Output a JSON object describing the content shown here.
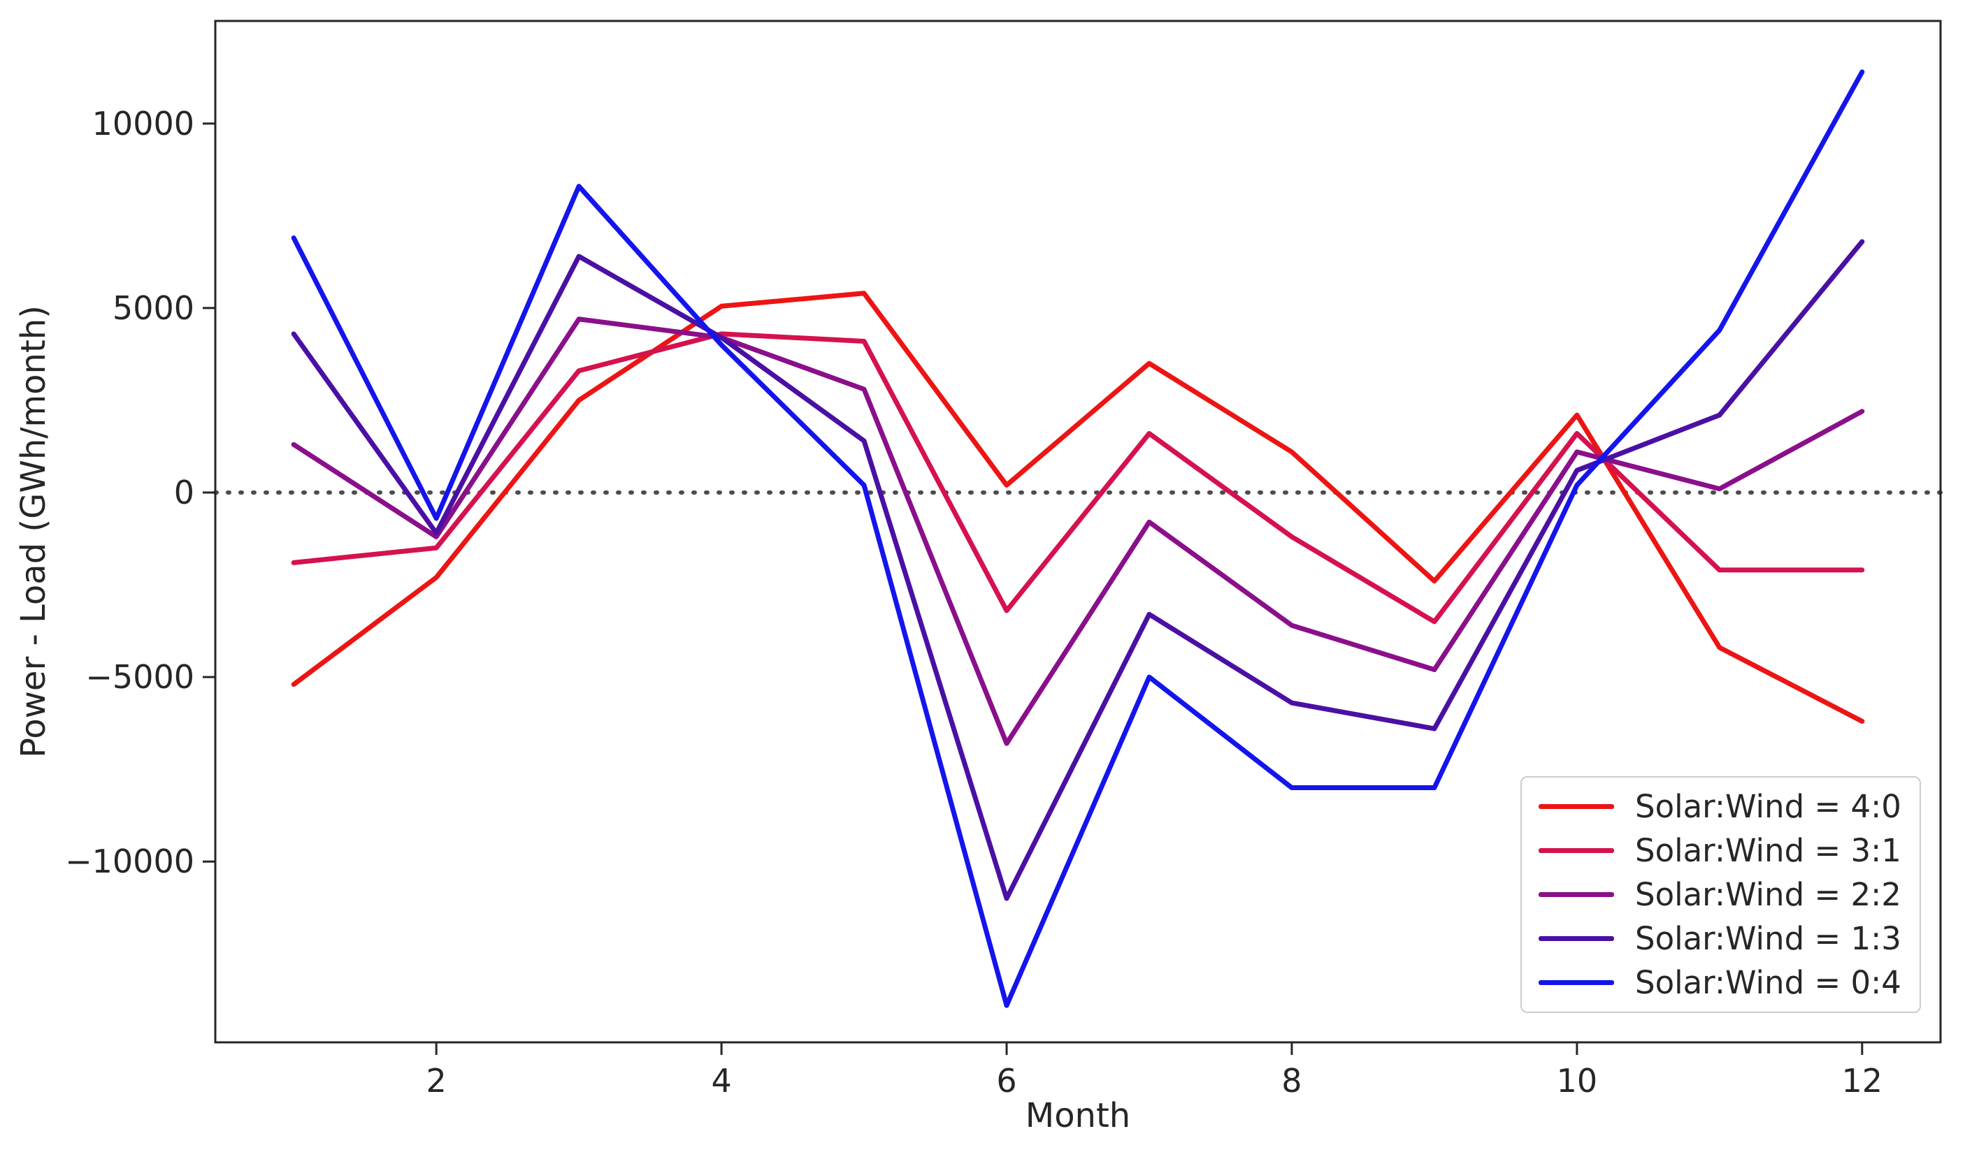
{
  "figure": {
    "background": "#ffffff",
    "axis_color": "#262626",
    "zero_line_color": "#4d4d4d"
  },
  "chart_data": {
    "type": "line",
    "title": "",
    "xlabel": "Month",
    "ylabel": "Power - Load (GWh/month)",
    "x": [
      1,
      2,
      3,
      4,
      5,
      6,
      7,
      8,
      9,
      10,
      11,
      12
    ],
    "series": [
      {
        "name": "Solar:Wind = 4:0",
        "color": "#ed1414",
        "values": [
          -5200,
          -2300,
          2500,
          5050,
          5400,
          200,
          3500,
          1100,
          -2400,
          2100,
          -4200,
          -6200
        ]
      },
      {
        "name": "Solar:Wind = 3:1",
        "color": "#d5114e",
        "values": [
          -1900,
          -1500,
          3300,
          4300,
          4100,
          -3200,
          1600,
          -1200,
          -3500,
          1600,
          -2100,
          -2100
        ]
      },
      {
        "name": "Solar:Wind = 2:2",
        "color": "#8a0f8a",
        "values": [
          1300,
          -1200,
          4700,
          4200,
          2800,
          -6800,
          -800,
          -3600,
          -4800,
          1100,
          100,
          2200
        ]
      },
      {
        "name": "Solar:Wind = 1:3",
        "color": "#4a10a4",
        "values": [
          4300,
          -1100,
          6400,
          4200,
          1400,
          -11000,
          -3300,
          -5700,
          -6400,
          600,
          2100,
          6800
        ]
      },
      {
        "name": "Solar:Wind = 0:4",
        "color": "#1414ed",
        "values": [
          6900,
          -700,
          8300,
          4000,
          200,
          -13900,
          -5000,
          -8000,
          -8000,
          200,
          4400,
          11400
        ]
      }
    ],
    "x_ticks": [
      2,
      4,
      6,
      8,
      10,
      12
    ],
    "y_ticks": [
      -10000,
      -5000,
      0,
      5000,
      10000
    ],
    "xlim": [
      0.45,
      12.55
    ],
    "ylim": [
      -14900,
      12780
    ],
    "zero_line": {
      "y": 0,
      "style": "dotted"
    },
    "grid": false,
    "legend_position": "lower right"
  }
}
